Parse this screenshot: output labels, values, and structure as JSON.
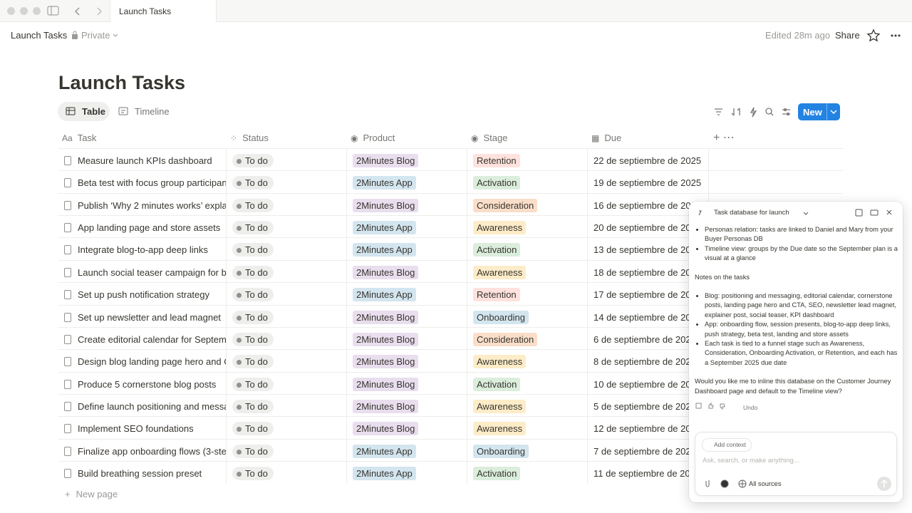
{
  "tab": {
    "title": "Launch Tasks"
  },
  "header": {
    "breadcrumb": "Launch Tasks",
    "privacy": "Private",
    "edited": "Edited 28m ago",
    "share": "Share"
  },
  "page": {
    "title": "Launch Tasks",
    "views": [
      "Table",
      "Timeline"
    ],
    "new_button": "New"
  },
  "table": {
    "columns": [
      "Task",
      "Status",
      "Product",
      "Stage",
      "Due"
    ],
    "rows": [
      [
        "Measure launch KPIs dashboard",
        "To do",
        "2Minutes Blog",
        "Retention",
        "22 de septiembre de 2025"
      ],
      [
        "Beta test with focus group participant",
        "To do",
        "2Minutes App",
        "Activation",
        "19 de septiembre de 2025"
      ],
      [
        "Publish ‘Why 2 minutes works’ explair",
        "To do",
        "2Minutes Blog",
        "Consideration",
        "16 de septiembre de 2025"
      ],
      [
        "App landing page and store assets",
        "To do",
        "2Minutes App",
        "Awareness",
        "20 de septiembre de 2025"
      ],
      [
        "Integrate blog-to-app deep links",
        "To do",
        "2Minutes App",
        "Activation",
        "13 de septiembre de 2025"
      ],
      [
        "Launch social teaser campaign for blo",
        "To do",
        "2Minutes Blog",
        "Awareness",
        "18 de septiembre de 2025"
      ],
      [
        "Set up push notification strategy",
        "To do",
        "2Minutes App",
        "Retention",
        "17 de septiembre de 2025"
      ],
      [
        "Set up newsletter and lead magnet",
        "To do",
        "2Minutes Blog",
        "Onboarding",
        "14 de septiembre de 2025"
      ],
      [
        "Create editorial calendar for Septemb",
        "To do",
        "2Minutes Blog",
        "Consideration",
        "6 de septiembre de 2025"
      ],
      [
        "Design blog landing page hero and CT",
        "To do",
        "2Minutes Blog",
        "Awareness",
        "8 de septiembre de 2025"
      ],
      [
        "Produce 5 cornerstone blog posts",
        "To do",
        "2Minutes Blog",
        "Activation",
        "10 de septiembre de 2025"
      ],
      [
        "Define launch positioning and messag",
        "To do",
        "2Minutes Blog",
        "Awareness",
        "5 de septiembre de 2025"
      ],
      [
        "Implement SEO foundations",
        "To do",
        "2Minutes Blog",
        "Awareness",
        "12 de septiembre de 2025"
      ],
      [
        "Finalize app onboarding flows (3-step",
        "To do",
        "2Minutes App",
        "Onboarding",
        "7 de septiembre de 2025"
      ],
      [
        "Build breathing session preset",
        "To do",
        "2Minutes App",
        "Activation",
        "11 de septiembre de 2025"
      ]
    ],
    "new_row": "New page",
    "tag_colors": {
      "2Minutes Blog": "#e8deee",
      "2Minutes App": "#d3e5ef",
      "Retention": "#ffe2dd",
      "Activation": "#dbeddb",
      "Consideration": "#fadec9",
      "Awareness": "#fdecc8",
      "Onboarding": "#d3e5ef"
    }
  },
  "ai_panel": {
    "title": "Task database for launch",
    "intro_bullets": [
      "Personas relation: tasks are linked to Daniel and Mary from your Buyer Personas DB",
      "Timeline view: groups by the Due date so the September plan is a visual at a glance"
    ],
    "notes_heading": "Notes on the tasks",
    "notes_bullets": [
      "Blog: positioning and messaging, editorial calendar, cornerstone posts, landing page hero and CTA, SEO, newsletter lead magnet, explainer post, social teaser, KPI dashboard",
      "App: onboarding flow, session presents, blog-to-app deep links, push strategy, beta test, landing and store assets",
      "Each task is tied to a funnel stage such as Awareness, Consideration, Onboarding Activation, or Retention, and each has a September 2025 due date"
    ],
    "question": "Would you like me to inline this database on the Customer Journey Dashboard page and default to the Timeline view?",
    "undo": "Undo",
    "add_context": "Add context",
    "placeholder": "Ask, search, or make anything...",
    "sources": "All sources"
  }
}
